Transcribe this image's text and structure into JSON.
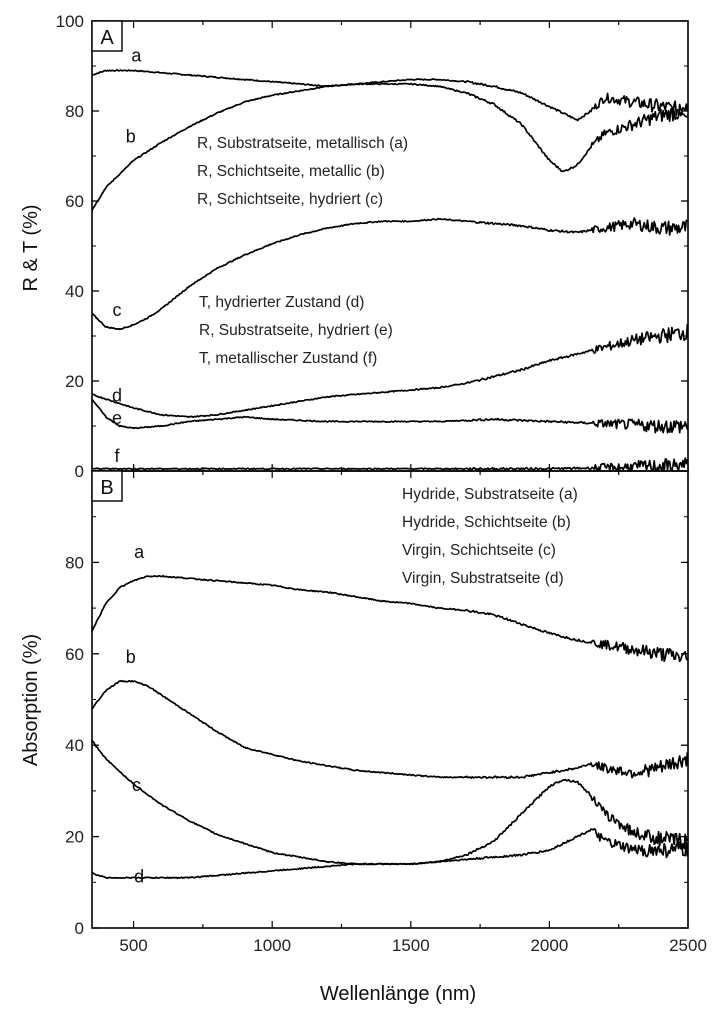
{
  "chart_data": [
    {
      "type": "line",
      "panel_label": "A",
      "ylabel": "R & T (%)",
      "xlim": [
        350,
        2500
      ],
      "ylim": [
        0,
        100
      ],
      "y_ticks": [
        "0",
        "20",
        "40",
        "60",
        "80",
        "100"
      ],
      "legend_top": [
        "R, Substratseite, metallisch (a)",
        "R, Schichtseite, metallic (b)",
        "R, Schichtseite, hydriert (c)"
      ],
      "legend_bottom": [
        "T, hydrierter Zustand (d)",
        "R, Substratseite, hydriert (e)",
        "T, metallischer Zustand (f)"
      ],
      "series": [
        {
          "name": "a",
          "x": [
            350,
            400,
            500,
            600,
            700,
            800,
            900,
            1000,
            1100,
            1200,
            1300,
            1400,
            1500,
            1600,
            1700,
            1800,
            1900,
            2000,
            2050,
            2100,
            2150,
            2200,
            2300,
            2400,
            2500
          ],
          "y": [
            88,
            89,
            89,
            88.5,
            88,
            87.5,
            87,
            86.5,
            86,
            85.5,
            86,
            86.5,
            87,
            87,
            86.5,
            85.5,
            84,
            81,
            79.5,
            78,
            80,
            83,
            82,
            81,
            80
          ]
        },
        {
          "name": "b",
          "x": [
            350,
            400,
            500,
            600,
            700,
            800,
            900,
            1000,
            1100,
            1200,
            1300,
            1400,
            1500,
            1600,
            1700,
            1800,
            1900,
            1950,
            2000,
            2050,
            2100,
            2150,
            2200,
            2300,
            2400,
            2500
          ],
          "y": [
            58,
            63,
            69,
            73,
            76.5,
            79.5,
            82,
            83.5,
            84.5,
            85.5,
            86,
            86,
            86,
            85.5,
            84,
            81.5,
            77,
            73,
            69,
            66.5,
            68,
            72,
            75,
            77,
            79,
            80
          ]
        },
        {
          "name": "c",
          "x": [
            350,
            400,
            450,
            500,
            550,
            600,
            700,
            800,
            900,
            1000,
            1100,
            1200,
            1300,
            1400,
            1500,
            1600,
            1700,
            1800,
            1900,
            2000,
            2100,
            2200,
            2300,
            2400,
            2500
          ],
          "y": [
            35,
            32,
            31.5,
            32.5,
            34,
            36,
            41,
            45,
            48,
            50.5,
            52.5,
            54,
            55,
            55.5,
            55.5,
            56,
            55.5,
            55,
            54.5,
            53.5,
            53,
            54,
            55,
            54,
            54
          ]
        },
        {
          "name": "d",
          "x": [
            350,
            400,
            500,
            600,
            700,
            800,
            900,
            1000,
            1100,
            1200,
            1300,
            1400,
            1500,
            1600,
            1700,
            1800,
            1900,
            2000,
            2100,
            2200,
            2300,
            2400,
            2500
          ],
          "y": [
            17,
            16,
            14,
            12.5,
            12,
            12.5,
            13.5,
            14.5,
            15.5,
            16.5,
            17,
            17.5,
            18,
            18.5,
            19.5,
            21,
            22.5,
            24.5,
            26,
            27.5,
            29,
            30,
            31
          ]
        },
        {
          "name": "e",
          "x": [
            350,
            400,
            450,
            500,
            600,
            700,
            800,
            900,
            1000,
            1200,
            1400,
            1600,
            1800,
            2000,
            2200,
            2400,
            2500
          ],
          "y": [
            16,
            12,
            10,
            9.5,
            10,
            11,
            11.5,
            12,
            11.5,
            11,
            11,
            11,
            11.5,
            11,
            10.5,
            10,
            10
          ]
        },
        {
          "name": "f",
          "x": [
            350,
            500,
            1000,
            1500,
            2000,
            2200,
            2350,
            2500
          ],
          "y": [
            0.5,
            0.5,
            0.5,
            0.5,
            0.5,
            0.7,
            1,
            1.2
          ]
        }
      ]
    },
    {
      "type": "line",
      "panel_label": "B",
      "ylabel": "Absorption (%)",
      "xlabel": "Wellenlänge (nm)",
      "xlim": [
        350,
        2500
      ],
      "ylim": [
        0,
        100
      ],
      "x_ticks": [
        "500",
        "1000",
        "1500",
        "2000",
        "2500"
      ],
      "y_ticks": [
        "0",
        "20",
        "40",
        "60",
        "80"
      ],
      "legend": [
        "Hydride, Substratseite (a)",
        "Hydride, Schichtseite (b)",
        "Virgin, Schichtseite (c)",
        "Virgin, Substratseite (d)"
      ],
      "series": [
        {
          "name": "a",
          "x": [
            350,
            400,
            450,
            500,
            550,
            600,
            700,
            800,
            900,
            1000,
            1100,
            1200,
            1300,
            1400,
            1500,
            1600,
            1700,
            1800,
            1900,
            2000,
            2100,
            2200,
            2300,
            2400,
            2500
          ],
          "y": [
            65,
            71,
            74.5,
            76,
            77,
            77,
            76.5,
            76,
            75.5,
            75,
            74,
            73.5,
            72.5,
            71.5,
            71,
            70,
            69.5,
            68.5,
            66.5,
            64.5,
            63,
            62,
            61,
            60,
            59
          ]
        },
        {
          "name": "b",
          "x": [
            350,
            400,
            450,
            500,
            550,
            600,
            700,
            800,
            900,
            1000,
            1100,
            1200,
            1300,
            1400,
            1500,
            1600,
            1700,
            1800,
            1900,
            2000,
            2100,
            2150,
            2200,
            2300,
            2400,
            2500
          ],
          "y": [
            48,
            52,
            54,
            54,
            53,
            51,
            47,
            43,
            39.5,
            38,
            36.5,
            35.5,
            34.5,
            34,
            33.5,
            33,
            33,
            33,
            33,
            34,
            35,
            36,
            35,
            34,
            35,
            37
          ]
        },
        {
          "name": "c",
          "x": [
            350,
            400,
            500,
            600,
            700,
            800,
            900,
            1000,
            1100,
            1200,
            1300,
            1400,
            1500,
            1600,
            1700,
            1800,
            1900,
            2000,
            2050,
            2100,
            2150,
            2200,
            2300,
            2400,
            2500
          ],
          "y": [
            41,
            37,
            31.5,
            27,
            23.5,
            20.5,
            18.5,
            16.5,
            15.5,
            14.5,
            14,
            14,
            14,
            14.5,
            16,
            19,
            25,
            31,
            32.5,
            32,
            29,
            25,
            21,
            19.5,
            19
          ]
        },
        {
          "name": "d",
          "x": [
            350,
            400,
            500,
            600,
            700,
            800,
            900,
            1000,
            1100,
            1200,
            1300,
            1400,
            1500,
            1600,
            1700,
            1800,
            1900,
            2000,
            2100,
            2150,
            2200,
            2300,
            2400,
            2500
          ],
          "y": [
            12,
            11,
            11,
            11,
            11,
            11.5,
            12,
            12.5,
            13,
            13.5,
            14,
            14,
            14,
            14.5,
            15,
            15.5,
            16,
            17,
            20,
            21.5,
            19,
            17,
            17,
            17
          ]
        }
      ]
    }
  ]
}
